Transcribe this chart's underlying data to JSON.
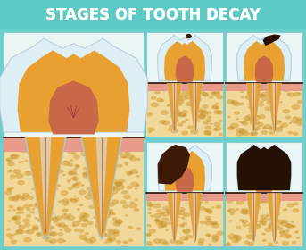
{
  "title": "STAGES OF TOOTH DECAY",
  "title_bg": "#5ec8c4",
  "title_color": "#ffffff",
  "bg_color": "#6dcfcb",
  "panel_bg": "#eaf6f5",
  "bone_color": "#f2d898",
  "bone_spot_color": "#c8922a",
  "gum_color": "#e89b88",
  "gum_line_color": "#c07060",
  "enamel_color": "#ddeef5",
  "enamel_edge": "#b8ccd8",
  "dentin_color": "#e8a030",
  "dentin_dark_color": "#c07820",
  "pulp_color": "#c86848",
  "canal_outer": "#e8a030",
  "canal_inner": "#e0c8a0",
  "nerve_color": "#903030",
  "cement_color": "#a8c8d8",
  "decay1": "#3a1a08",
  "decay2": "#2a1005",
  "decay3": "#3d1a08",
  "decay4": "#251005"
}
